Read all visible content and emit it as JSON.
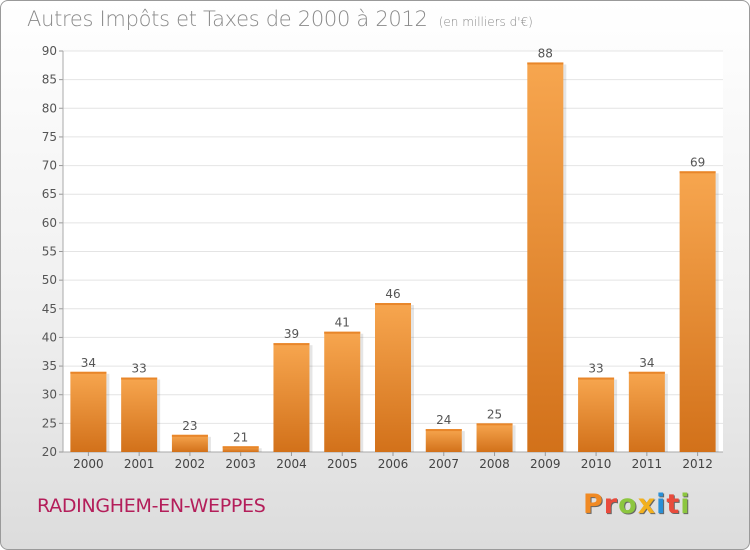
{
  "header": {
    "title": "Autres Impôts et Taxes de 2000 à 2012",
    "unit": "(en milliers d'€)"
  },
  "footer": {
    "commune": "RADINGHEM-EN-WEPPES",
    "logo_text": "Proxiti"
  },
  "colors": {
    "bar_light": "#f7a64f",
    "bar_dark": "#d2711a",
    "commune": "#b41e5a",
    "logo": [
      "#f08a24",
      "#e94b3c",
      "#8cc63f",
      "#f2b01e",
      "#2a8fd6",
      "#e94b3c",
      "#8cc63f"
    ]
  },
  "chart_data": {
    "type": "bar",
    "title": "Autres Impôts et Taxes de 2000 à 2012",
    "xlabel": "",
    "ylabel": "",
    "categories": [
      "2000",
      "2001",
      "2002",
      "2003",
      "2004",
      "2005",
      "2006",
      "2007",
      "2008",
      "2009",
      "2010",
      "2011",
      "2012"
    ],
    "values": [
      34,
      33,
      23,
      21,
      39,
      41,
      46,
      24,
      25,
      88,
      33,
      34,
      69
    ],
    "ylim": [
      20,
      90
    ],
    "yticks": [
      20,
      25,
      30,
      35,
      40,
      45,
      50,
      55,
      60,
      65,
      70,
      75,
      80,
      85,
      90
    ],
    "grid": true,
    "legend": "none"
  }
}
